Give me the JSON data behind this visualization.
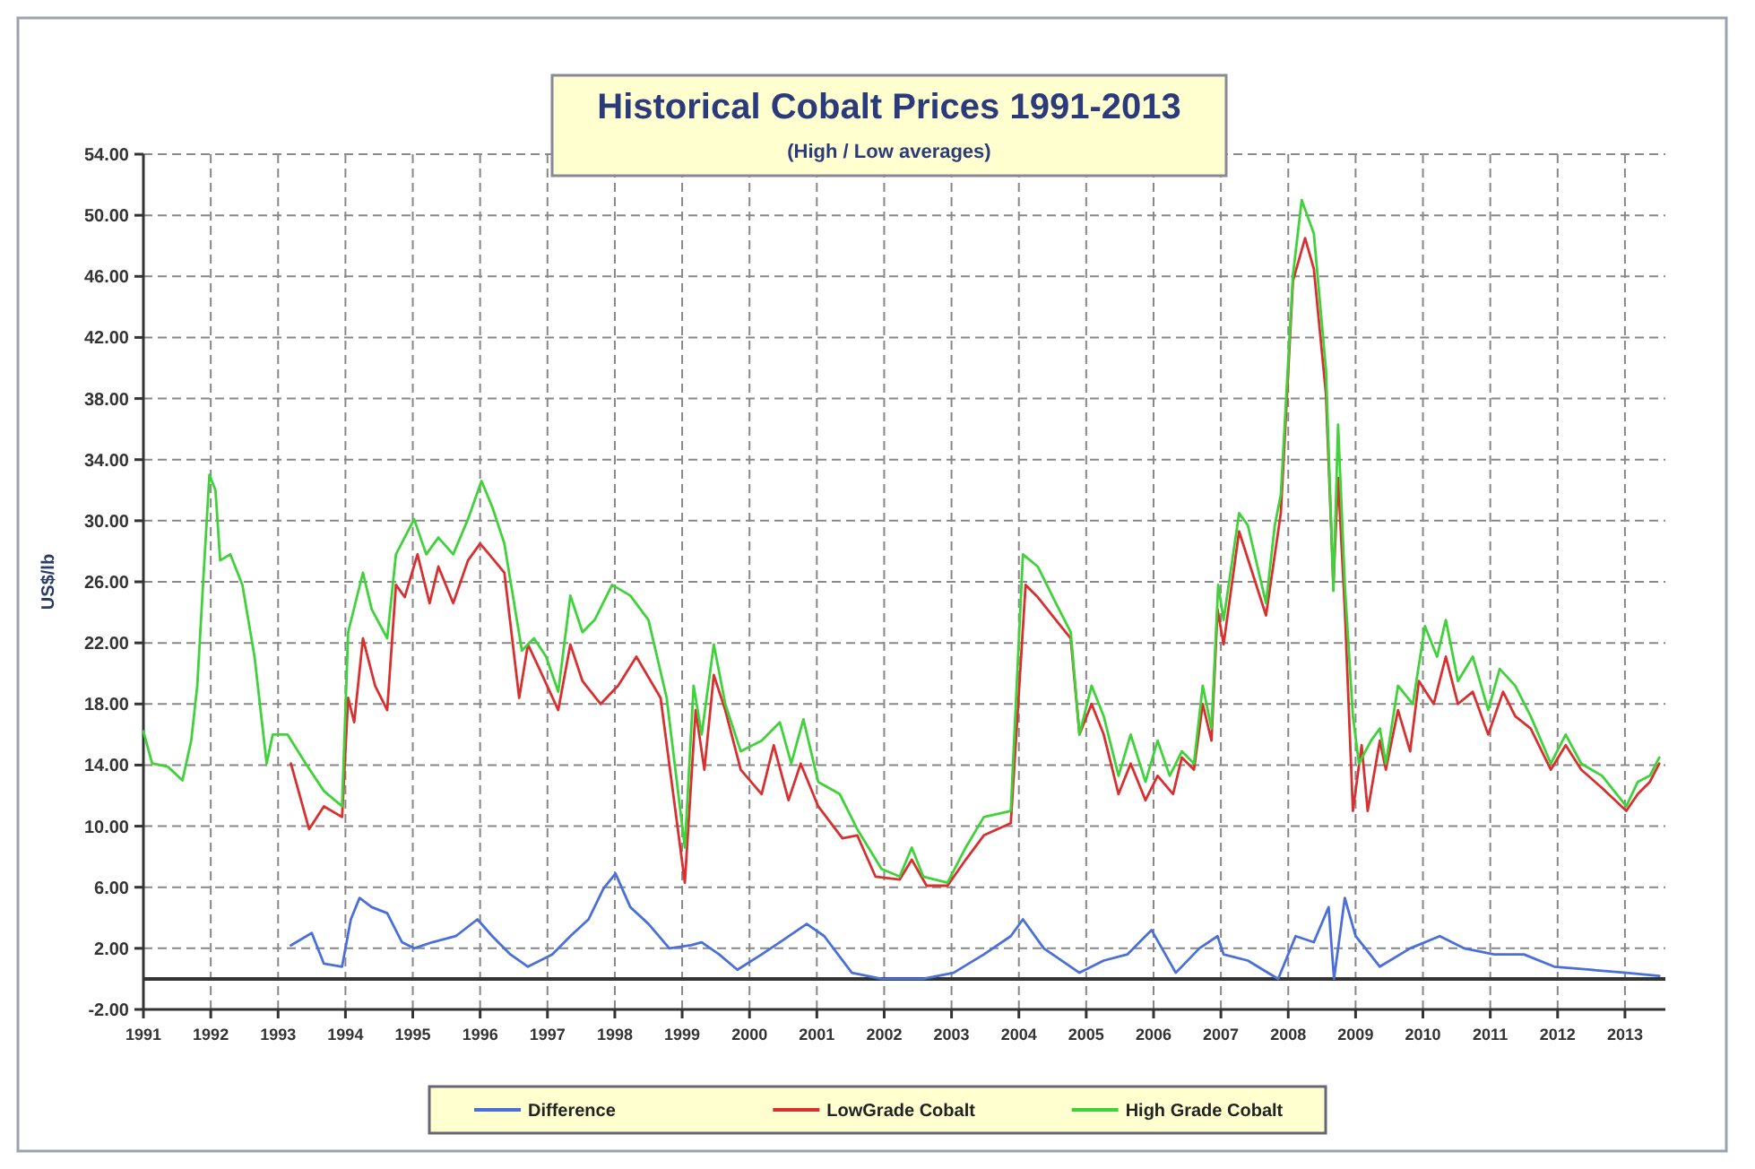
{
  "chart_data": {
    "type": "line",
    "title": "Historical Cobalt Prices 1991-2013",
    "subtitle": "(High / Low averages)",
    "ylabel": "US$/lb",
    "xlim": [
      1991,
      2013.6
    ],
    "xticks": [
      1991,
      1992,
      1993,
      1994,
      1995,
      1996,
      1997,
      1998,
      1999,
      2000,
      2001,
      2002,
      2003,
      2004,
      2005,
      2006,
      2007,
      2008,
      2009,
      2010,
      2011,
      2012,
      2013
    ],
    "ylim": [
      -2,
      54
    ],
    "yticks": [
      {
        "value": -2,
        "label": "-2.00"
      },
      {
        "value": 2,
        "label": "2.00"
      },
      {
        "value": 6,
        "label": "6.00"
      },
      {
        "value": 10,
        "label": "10.00"
      },
      {
        "value": 14,
        "label": "14.00"
      },
      {
        "value": 18,
        "label": "18.00"
      },
      {
        "value": 22,
        "label": "22.00"
      },
      {
        "value": 26,
        "label": "26.00"
      },
      {
        "value": 30,
        "label": "30.00"
      },
      {
        "value": 34,
        "label": "34.00"
      },
      {
        "value": 38,
        "label": "38.00"
      },
      {
        "value": 42,
        "label": "42.00"
      },
      {
        "value": 46,
        "label": "46.00"
      },
      {
        "value": 50,
        "label": "50.00"
      },
      {
        "value": 54,
        "label": "54.00"
      }
    ],
    "grid": true,
    "legend": "bottom",
    "line_style": "solid",
    "marker": "none",
    "ref_lines": [
      {
        "axis": "y",
        "value": 0,
        "color": "#333333"
      }
    ],
    "series": [
      {
        "name": "Difference",
        "color": "#4a6fd8",
        "x": [
          1993.19,
          1993.5,
          1993.68,
          1993.95,
          1994.08,
          1994.21,
          1994.39,
          1994.62,
          1994.84,
          1995.02,
          1995.29,
          1995.64,
          1995.96,
          1996.18,
          1996.45,
          1996.71,
          1997.07,
          1997.34,
          1997.61,
          1997.83,
          1998.01,
          1998.23,
          1998.5,
          1998.81,
          1999.13,
          1999.29,
          1999.55,
          1999.82,
          2000.18,
          2000.45,
          2000.85,
          2001.11,
          2001.52,
          2001.96,
          2002.58,
          2003.03,
          2003.48,
          2003.88,
          2004.06,
          2004.37,
          2004.9,
          2005.26,
          2005.61,
          2005.97,
          2006.33,
          2006.68,
          2006.95,
          2007.04,
          2007.4,
          2007.85,
          2008.11,
          2008.38,
          2008.6,
          2008.68,
          2008.84,
          2009.0,
          2009.36,
          2009.81,
          2010.25,
          2010.61,
          2011.06,
          2011.5,
          2011.95,
          2012.48,
          2013.02,
          2013.51
        ],
        "values": [
          2.2,
          3.0,
          1.0,
          0.8,
          3.9,
          5.3,
          4.7,
          4.3,
          2.4,
          2.0,
          2.4,
          2.8,
          3.9,
          2.8,
          1.6,
          0.8,
          1.6,
          2.8,
          3.9,
          5.9,
          6.9,
          4.7,
          3.6,
          2.0,
          2.2,
          2.4,
          1.6,
          0.6,
          1.6,
          2.4,
          3.6,
          2.8,
          0.4,
          0.0,
          0.0,
          0.4,
          1.6,
          2.8,
          3.9,
          2.0,
          0.4,
          1.2,
          1.6,
          3.2,
          0.4,
          2.0,
          2.8,
          1.6,
          1.2,
          0.0,
          2.8,
          2.4,
          4.7,
          0.0,
          5.3,
          2.8,
          0.8,
          2.0,
          2.8,
          2.0,
          1.6,
          1.6,
          0.8,
          0.6,
          0.4,
          0.2
        ]
      },
      {
        "name": "LowGrade Cobalt",
        "color": "#d83030",
        "x": [
          1993.19,
          1993.46,
          1993.68,
          1993.95,
          1994.04,
          1994.13,
          1994.26,
          1994.44,
          1994.62,
          1994.75,
          1994.88,
          1995.07,
          1995.25,
          1995.38,
          1995.6,
          1995.82,
          1996.0,
          1996.21,
          1996.36,
          1996.58,
          1996.71,
          1996.88,
          1997.16,
          1997.34,
          1997.52,
          1997.79,
          1998.05,
          1998.32,
          1998.68,
          1999.04,
          1999.2,
          1999.33,
          1999.47,
          1999.64,
          1999.87,
          2000.18,
          2000.36,
          2000.58,
          2000.76,
          2001.02,
          2001.38,
          2001.6,
          2001.87,
          2002.23,
          2002.41,
          2002.63,
          2002.94,
          2003.21,
          2003.48,
          2003.88,
          2004.1,
          2004.28,
          2004.55,
          2004.77,
          2004.9,
          2005.08,
          2005.26,
          2005.48,
          2005.66,
          2005.88,
          2006.06,
          2006.29,
          2006.42,
          2006.6,
          2006.73,
          2006.86,
          2006.95,
          2007.04,
          2007.27,
          2007.67,
          2007.89,
          2008.07,
          2008.25,
          2008.38,
          2008.56,
          2008.67,
          2008.74,
          2008.84,
          2008.96,
          2009.09,
          2009.18,
          2009.36,
          2009.45,
          2009.63,
          2009.81,
          2009.94,
          2010.16,
          2010.34,
          2010.52,
          2010.74,
          2010.97,
          2011.19,
          2011.37,
          2011.6,
          2011.9,
          2012.12,
          2012.35,
          2012.66,
          2013.02,
          2013.19,
          2013.37,
          2013.51
        ],
        "values": [
          14.1,
          9.8,
          11.3,
          10.6,
          18.4,
          16.8,
          22.3,
          19.2,
          17.6,
          25.8,
          25.0,
          27.8,
          24.6,
          27.0,
          24.6,
          27.4,
          28.5,
          27.4,
          26.6,
          18.4,
          21.9,
          20.3,
          17.6,
          21.9,
          19.5,
          18.0,
          19.2,
          21.1,
          18.4,
          6.3,
          17.6,
          13.7,
          19.9,
          17.6,
          13.7,
          12.1,
          15.3,
          11.7,
          14.1,
          11.3,
          9.2,
          9.4,
          6.7,
          6.5,
          7.8,
          6.1,
          6.1,
          7.8,
          9.4,
          10.2,
          25.8,
          25.0,
          23.5,
          22.3,
          16.0,
          18.0,
          16.0,
          12.1,
          14.1,
          11.7,
          13.3,
          12.1,
          14.5,
          13.7,
          18.0,
          15.6,
          24.2,
          21.9,
          29.3,
          23.8,
          30.5,
          45.7,
          48.5,
          46.5,
          38.3,
          25.8,
          32.8,
          24.2,
          11.0,
          15.3,
          11.0,
          15.6,
          13.7,
          17.6,
          14.9,
          19.5,
          18.0,
          21.1,
          18.0,
          18.8,
          16.0,
          18.8,
          17.2,
          16.4,
          13.7,
          15.3,
          13.7,
          12.5,
          11.0,
          12.1,
          12.9,
          14.1
        ]
      },
      {
        "name": "High Grade Cobalt",
        "color": "#3fd23a",
        "x": [
          1991.0,
          1991.13,
          1991.36,
          1991.58,
          1991.71,
          1991.8,
          1991.89,
          1991.98,
          1992.07,
          1992.14,
          1992.29,
          1992.47,
          1992.65,
          1992.83,
          1992.92,
          1993.14,
          1993.41,
          1993.68,
          1993.95,
          1994.04,
          1994.26,
          1994.39,
          1994.62,
          1994.75,
          1995.02,
          1995.2,
          1995.38,
          1995.6,
          1995.82,
          1996.02,
          1996.18,
          1996.36,
          1996.62,
          1996.8,
          1996.98,
          1997.16,
          1997.34,
          1997.52,
          1997.7,
          1997.96,
          1998.23,
          1998.5,
          1998.77,
          1999.04,
          1999.17,
          1999.29,
          1999.47,
          1999.64,
          1999.87,
          2000.18,
          2000.45,
          2000.62,
          2000.8,
          2001.02,
          2001.34,
          2001.6,
          2001.96,
          2002.23,
          2002.41,
          2002.58,
          2002.94,
          2003.21,
          2003.48,
          2003.88,
          2004.06,
          2004.28,
          2004.55,
          2004.77,
          2004.9,
          2005.08,
          2005.26,
          2005.48,
          2005.66,
          2005.88,
          2006.06,
          2006.24,
          2006.42,
          2006.6,
          2006.73,
          2006.86,
          2006.96,
          2007.04,
          2007.27,
          2007.4,
          2007.67,
          2007.8,
          2007.89,
          2008.07,
          2008.2,
          2008.38,
          2008.56,
          2008.67,
          2008.74,
          2008.84,
          2008.96,
          2009.05,
          2009.23,
          2009.36,
          2009.45,
          2009.63,
          2009.85,
          2010.03,
          2010.21,
          2010.34,
          2010.52,
          2010.74,
          2010.97,
          2011.14,
          2011.37,
          2011.6,
          2011.9,
          2012.12,
          2012.35,
          2012.66,
          2013.02,
          2013.19,
          2013.37,
          2013.51
        ],
        "values": [
          16.2,
          14.1,
          13.9,
          13.0,
          15.6,
          19.2,
          26.2,
          33.0,
          32.0,
          27.4,
          27.8,
          25.8,
          21.1,
          14.1,
          16.0,
          16.0,
          14.1,
          12.3,
          11.3,
          22.7,
          26.6,
          24.2,
          22.3,
          27.8,
          30.1,
          27.8,
          28.9,
          27.8,
          30.1,
          32.6,
          30.9,
          28.5,
          21.5,
          22.3,
          21.1,
          18.8,
          25.1,
          22.7,
          23.5,
          25.8,
          25.1,
          23.5,
          18.4,
          8.6,
          19.2,
          16.0,
          21.9,
          18.0,
          14.9,
          15.6,
          16.8,
          14.1,
          17.0,
          12.9,
          12.1,
          9.8,
          7.2,
          6.7,
          8.6,
          6.7,
          6.3,
          8.6,
          10.6,
          11.0,
          27.8,
          27.0,
          24.6,
          22.7,
          16.0,
          19.2,
          17.2,
          13.3,
          16.0,
          12.9,
          15.6,
          13.3,
          14.9,
          14.1,
          19.2,
          16.4,
          25.8,
          23.5,
          30.5,
          29.7,
          24.6,
          29.7,
          31.7,
          46.1,
          51.0,
          48.8,
          39.9,
          25.4,
          36.3,
          25.8,
          17.2,
          14.1,
          15.6,
          16.4,
          14.1,
          19.2,
          18.0,
          23.1,
          21.1,
          23.5,
          19.5,
          21.1,
          17.6,
          20.3,
          19.2,
          17.2,
          14.1,
          16.0,
          14.1,
          13.3,
          11.3,
          12.9,
          13.3,
          14.5
        ]
      }
    ]
  }
}
